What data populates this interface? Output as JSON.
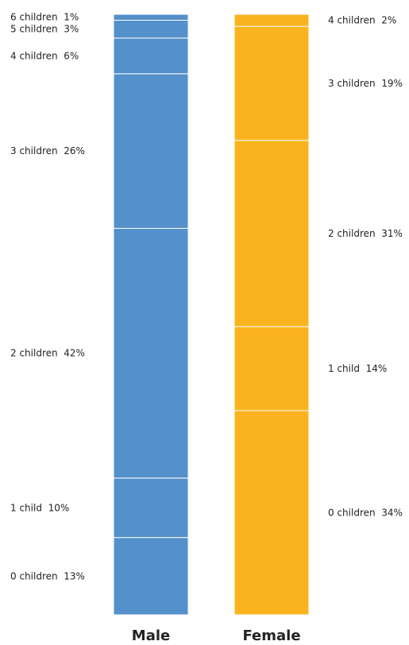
{
  "chart_data": {
    "type": "bar",
    "stacked": true,
    "categories": [
      "Male",
      "Female"
    ],
    "bars": [
      {
        "name": "Male",
        "color": "#5390cc",
        "segments": [
          {
            "label": "0 children",
            "value": 13
          },
          {
            "label": "1 child",
            "value": 10
          },
          {
            "label": "2 children",
            "value": 42
          },
          {
            "label": "3 children",
            "value": 26
          },
          {
            "label": "4 children",
            "value": 6
          },
          {
            "label": "5 children",
            "value": 3
          },
          {
            "label": "6 children",
            "value": 1
          }
        ]
      },
      {
        "name": "Female",
        "color": "#fbb41f",
        "segments": [
          {
            "label": "0 children",
            "value": 34
          },
          {
            "label": "1 child",
            "value": 14
          },
          {
            "label": "2 children",
            "value": 31
          },
          {
            "label": "3 children",
            "value": 19
          },
          {
            "label": "4 children",
            "value": 2
          }
        ]
      }
    ],
    "unit": "%",
    "label_placement": {
      "Male": "left",
      "Female": "right"
    }
  }
}
